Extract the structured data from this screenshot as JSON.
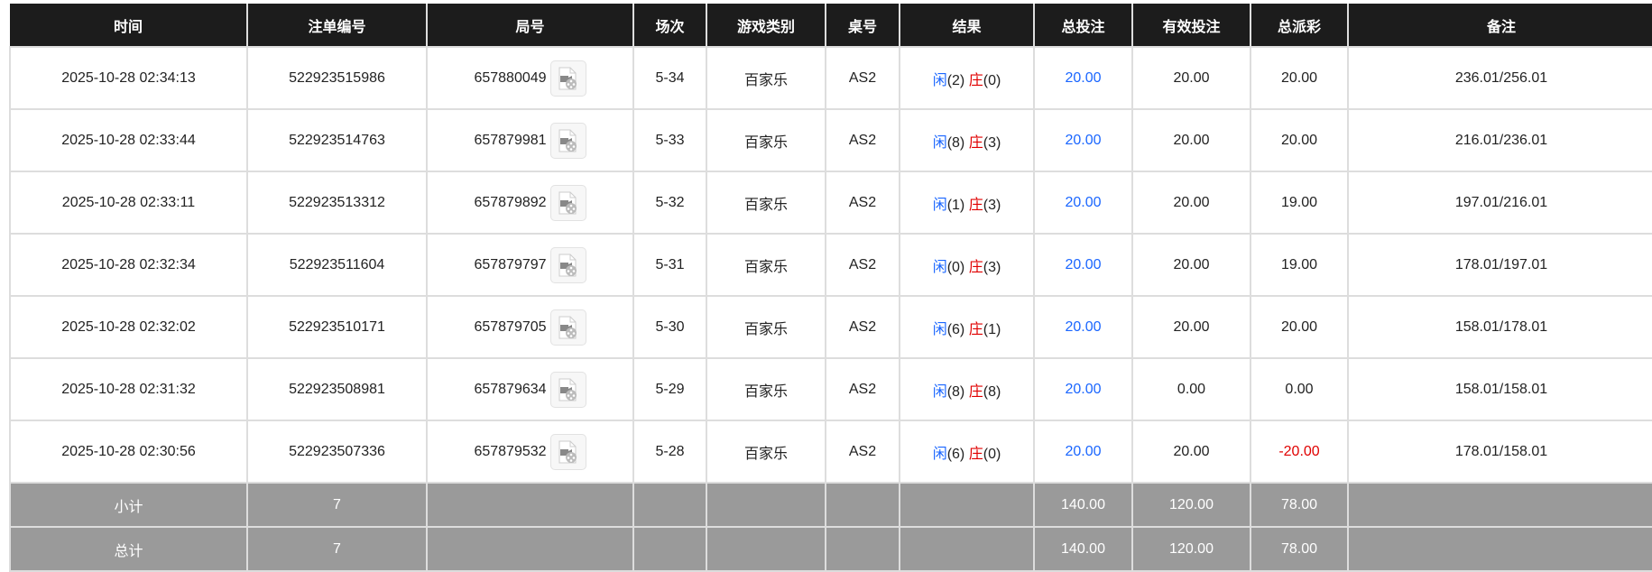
{
  "columns": [
    "时间",
    "注单编号",
    "局号",
    "场次",
    "游戏类别",
    "桌号",
    "结果",
    "总投注",
    "有效投注",
    "总派彩",
    "备注"
  ],
  "rows": [
    {
      "time": "2025-10-28 02:34:13",
      "bet_id": "522923515986",
      "round": "657880049",
      "session": "5-34",
      "game": "百家乐",
      "table": "AS2",
      "player_label": "闲",
      "player_score": "(2)",
      "banker_label": "庄",
      "banker_score": "(0)",
      "total_bet": "20.00",
      "valid_bet": "20.00",
      "payout": "20.00",
      "payout_negative": false,
      "note": "236.01/256.01"
    },
    {
      "time": "2025-10-28 02:33:44",
      "bet_id": "522923514763",
      "round": "657879981",
      "session": "5-33",
      "game": "百家乐",
      "table": "AS2",
      "player_label": "闲",
      "player_score": "(8)",
      "banker_label": "庄",
      "banker_score": "(3)",
      "total_bet": "20.00",
      "valid_bet": "20.00",
      "payout": "20.00",
      "payout_negative": false,
      "note": "216.01/236.01"
    },
    {
      "time": "2025-10-28 02:33:11",
      "bet_id": "522923513312",
      "round": "657879892",
      "session": "5-32",
      "game": "百家乐",
      "table": "AS2",
      "player_label": "闲",
      "player_score": "(1)",
      "banker_label": "庄",
      "banker_score": "(3)",
      "total_bet": "20.00",
      "valid_bet": "20.00",
      "payout": "19.00",
      "payout_negative": false,
      "note": "197.01/216.01"
    },
    {
      "time": "2025-10-28 02:32:34",
      "bet_id": "522923511604",
      "round": "657879797",
      "session": "5-31",
      "game": "百家乐",
      "table": "AS2",
      "player_label": "闲",
      "player_score": "(0)",
      "banker_label": "庄",
      "banker_score": "(3)",
      "total_bet": "20.00",
      "valid_bet": "20.00",
      "payout": "19.00",
      "payout_negative": false,
      "note": "178.01/197.01"
    },
    {
      "time": "2025-10-28 02:32:02",
      "bet_id": "522923510171",
      "round": "657879705",
      "session": "5-30",
      "game": "百家乐",
      "table": "AS2",
      "player_label": "闲",
      "player_score": "(6)",
      "banker_label": "庄",
      "banker_score": "(1)",
      "total_bet": "20.00",
      "valid_bet": "20.00",
      "payout": "20.00",
      "payout_negative": false,
      "note": "158.01/178.01"
    },
    {
      "time": "2025-10-28 02:31:32",
      "bet_id": "522923508981",
      "round": "657879634",
      "session": "5-29",
      "game": "百家乐",
      "table": "AS2",
      "player_label": "闲",
      "player_score": "(8)",
      "banker_label": "庄",
      "banker_score": "(8)",
      "total_bet": "20.00",
      "valid_bet": "0.00",
      "payout": "0.00",
      "payout_negative": false,
      "note": "158.01/158.01"
    },
    {
      "time": "2025-10-28 02:30:56",
      "bet_id": "522923507336",
      "round": "657879532",
      "session": "5-28",
      "game": "百家乐",
      "table": "AS2",
      "player_label": "闲",
      "player_score": "(6)",
      "banker_label": "庄",
      "banker_score": "(0)",
      "total_bet": "20.00",
      "valid_bet": "20.00",
      "payout": "-20.00",
      "payout_negative": true,
      "note": "178.01/158.01"
    }
  ],
  "summary": [
    {
      "label": "小计",
      "count": "7",
      "total_bet": "140.00",
      "valid_bet": "120.00",
      "payout": "78.00"
    },
    {
      "label": "总计",
      "count": "7",
      "total_bet": "140.00",
      "valid_bet": "120.00",
      "payout": "78.00"
    }
  ],
  "colors": {
    "header_bg": "#1c1c1c",
    "player": "#1a66ff",
    "banker": "#e00000",
    "summary_bg": "#9a9a9a"
  },
  "icons": {
    "replay": "video-replay-icon"
  }
}
